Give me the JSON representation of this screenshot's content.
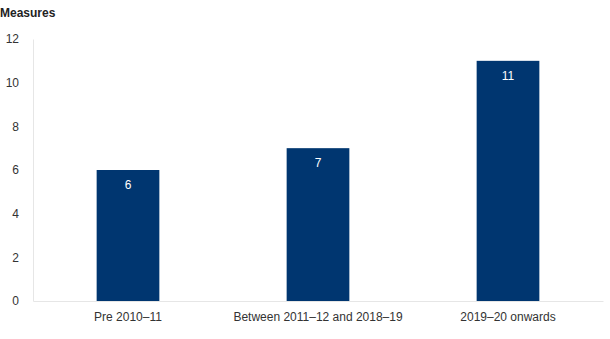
{
  "chart_data": {
    "type": "bar",
    "y_label": "Measures",
    "categories": [
      "Pre 2010–11",
      "Between 2011–12 and 2018–19",
      "2019–20 onwards"
    ],
    "values": [
      6,
      7,
      11
    ],
    "color": "#003670",
    "ylim": [
      0,
      12
    ],
    "yticks": [
      0,
      2,
      4,
      6,
      8,
      10,
      12
    ],
    "grid": false,
    "data_labels": true
  }
}
